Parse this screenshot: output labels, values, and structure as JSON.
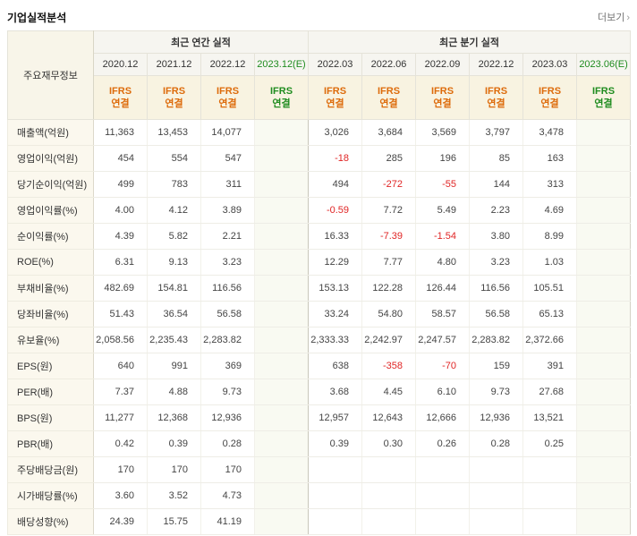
{
  "header": {
    "title": "기업실적분석",
    "more_label": "더보기",
    "more_arrow": "›"
  },
  "colors": {
    "ifrs_orange": "#dd6b0b",
    "estimate_green": "#1f8c1f",
    "negative_red": "#e02525",
    "header_beige": "#f8f3e1",
    "label_beige": "#fbf8ee"
  },
  "table": {
    "corner_label": "주요재무정보",
    "ifrs_label": "IFRS\n연결",
    "groups": [
      {
        "label": "최근 연간 실적",
        "span": 4
      },
      {
        "label": "최근 분기 실적",
        "span": 6
      }
    ],
    "columns": [
      {
        "label": "2020.12",
        "estimate": false
      },
      {
        "label": "2021.12",
        "estimate": false
      },
      {
        "label": "2022.12",
        "estimate": false
      },
      {
        "label": "2023.12(E)",
        "estimate": true
      },
      {
        "label": "2022.03",
        "estimate": false
      },
      {
        "label": "2022.06",
        "estimate": false
      },
      {
        "label": "2022.09",
        "estimate": false
      },
      {
        "label": "2022.12",
        "estimate": false
      },
      {
        "label": "2023.03",
        "estimate": false
      },
      {
        "label": "2023.06(E)",
        "estimate": true
      }
    ],
    "sections": [
      {
        "rows": [
          {
            "label": "매출액(억원)",
            "values": [
              "11,363",
              "13,453",
              "14,077",
              "",
              "3,026",
              "3,684",
              "3,569",
              "3,797",
              "3,478",
              ""
            ]
          },
          {
            "label": "영업이익(억원)",
            "values": [
              "454",
              "554",
              "547",
              "",
              "-18",
              "285",
              "196",
              "85",
              "163",
              ""
            ]
          },
          {
            "label": "당기순이익(억원)",
            "values": [
              "499",
              "783",
              "311",
              "",
              "494",
              "-272",
              "-55",
              "144",
              "313",
              ""
            ]
          }
        ]
      },
      {
        "rows": [
          {
            "label": "영업이익률(%)",
            "values": [
              "4.00",
              "4.12",
              "3.89",
              "",
              "-0.59",
              "7.72",
              "5.49",
              "2.23",
              "4.69",
              ""
            ]
          },
          {
            "label": "순이익률(%)",
            "values": [
              "4.39",
              "5.82",
              "2.21",
              "",
              "16.33",
              "-7.39",
              "-1.54",
              "3.80",
              "8.99",
              ""
            ]
          },
          {
            "label": "ROE(%)",
            "values": [
              "6.31",
              "9.13",
              "3.23",
              "",
              "12.29",
              "7.77",
              "4.80",
              "3.23",
              "1.03",
              ""
            ]
          },
          {
            "label": "부채비율(%)",
            "values": [
              "482.69",
              "154.81",
              "116.56",
              "",
              "153.13",
              "122.28",
              "126.44",
              "116.56",
              "105.51",
              ""
            ]
          },
          {
            "label": "당좌비율(%)",
            "values": [
              "51.43",
              "36.54",
              "56.58",
              "",
              "33.24",
              "54.80",
              "58.57",
              "56.58",
              "65.13",
              ""
            ]
          },
          {
            "label": "유보율(%)",
            "values": [
              "2,058.56",
              "2,235.43",
              "2,283.82",
              "",
              "2,333.33",
              "2,242.97",
              "2,247.57",
              "2,283.82",
              "2,372.66",
              ""
            ]
          }
        ]
      },
      {
        "rows": [
          {
            "label": "EPS(원)",
            "values": [
              "640",
              "991",
              "369",
              "",
              "638",
              "-358",
              "-70",
              "159",
              "391",
              ""
            ]
          },
          {
            "label": "PER(배)",
            "values": [
              "7.37",
              "4.88",
              "9.73",
              "",
              "3.68",
              "4.45",
              "6.10",
              "9.73",
              "27.68",
              ""
            ]
          },
          {
            "label": "BPS(원)",
            "values": [
              "11,277",
              "12,368",
              "12,936",
              "",
              "12,957",
              "12,643",
              "12,666",
              "12,936",
              "13,521",
              ""
            ]
          },
          {
            "label": "PBR(배)",
            "values": [
              "0.42",
              "0.39",
              "0.28",
              "",
              "0.39",
              "0.30",
              "0.26",
              "0.28",
              "0.25",
              ""
            ]
          }
        ]
      },
      {
        "rows": [
          {
            "label": "주당배당금(원)",
            "values": [
              "170",
              "170",
              "170",
              "",
              "",
              "",
              "",
              "",
              "",
              ""
            ]
          },
          {
            "label": "시가배당률(%)",
            "values": [
              "3.60",
              "3.52",
              "4.73",
              "",
              "",
              "",
              "",
              "",
              "",
              ""
            ]
          },
          {
            "label": "배당성향(%)",
            "values": [
              "24.39",
              "15.75",
              "41.19",
              "",
              "",
              "",
              "",
              "",
              "",
              ""
            ]
          }
        ]
      }
    ]
  }
}
